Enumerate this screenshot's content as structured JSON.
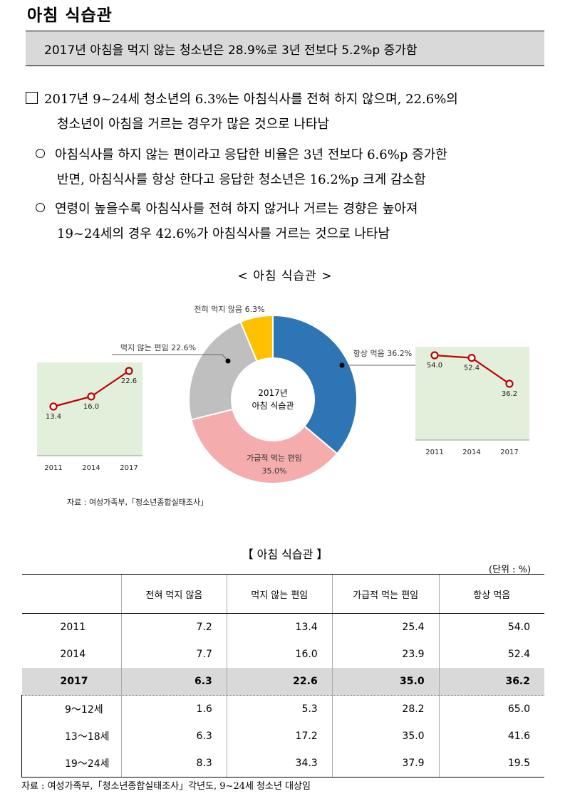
{
  "title": "아침 식습관",
  "headline": "2017년 아침을 먹지 않는 청소년은 28.9%로 3년 전보다 5.2%p 증가함",
  "bullets": {
    "main_line1": "2017년 9~24세 청소년의 6.3%는 아침식사를 전혀 하지 않으며, 22.6%의",
    "main_line2": "청소년이 아침을 거르는 경우가 많은 것으로 나타남",
    "sub1_line1": "아침식사를 하지 않는 편이라고 응답한 비율은 3년 전보다 6.6%p 증가한",
    "sub1_line2": "반면, 아침식사를 항상 한다고 응답한 청소년은 16.2%p 크게 감소함",
    "sub2_line1": "연령이 높을수록 아침식사를 전혀 하지 않거나 거르는 경향은 높아져",
    "sub2_line2": "19~24세의 경우 42.6%가 아침식사를 거르는 것으로 나타남"
  },
  "chart_title": "< 아침 식습관 >",
  "chart_data": [
    {
      "type": "pie",
      "center_label_line1": "2017년",
      "center_label_line2": "아침 식습관",
      "slices": [
        {
          "label": "항상 먹음",
          "value": 36.2,
          "display": "항상 먹음  36.2%",
          "color": "#2e75b6"
        },
        {
          "label": "가급적 먹는 편임",
          "value": 35.0,
          "display": "35.0%",
          "color": "#f4acac"
        },
        {
          "label": "먹지 않는 편임",
          "value": 22.6,
          "display": "먹지 않는 편임 22.6%",
          "color": "#bfbfbf"
        },
        {
          "label": "전혀 먹지 않음",
          "value": 6.3,
          "display": "전혀 먹지 않음 6.3%",
          "color": "#ffc000"
        }
      ]
    },
    {
      "type": "line",
      "categories": [
        "2011",
        "2014",
        "2017"
      ],
      "series": [
        {
          "values": [
            13.4,
            16.0,
            22.6
          ],
          "labels": [
            "13.4",
            "16.0",
            "22.6"
          ]
        }
      ],
      "color": "#c00000"
    },
    {
      "type": "line",
      "categories": [
        "2011",
        "2014",
        "2017"
      ],
      "series": [
        {
          "values": [
            54.0,
            52.4,
            36.2
          ],
          "labels": [
            "54.0",
            "52.4",
            "36.2"
          ]
        }
      ],
      "color": "#c00000"
    }
  ],
  "source1": "자료 : 여성가족부,「청소년종합실태조사」",
  "table_title": "【 아침 식습관 】",
  "unit": "(단위 : %)",
  "table": {
    "headers": [
      "전혀 먹지 않음",
      "먹지 않는 편임",
      "가급적 먹는 편임",
      "항상 먹음"
    ],
    "rows": [
      {
        "label": "2011",
        "values": [
          "7.2",
          "13.4",
          "25.4",
          "54.0"
        ]
      },
      {
        "label": "2014",
        "values": [
          "7.7",
          "16.0",
          "23.9",
          "52.4"
        ]
      },
      {
        "label": "2017",
        "values": [
          "6.3",
          "22.6",
          "35.0",
          "36.2"
        ]
      },
      {
        "label": "9～12세",
        "values": [
          "1.6",
          "5.3",
          "28.2",
          "65.0"
        ]
      },
      {
        "label": "13～18세",
        "values": [
          "6.3",
          "17.2",
          "35.0",
          "41.6"
        ]
      },
      {
        "label": "19～24세",
        "values": [
          "8.3",
          "34.3",
          "37.9",
          "19.5"
        ]
      }
    ]
  },
  "source2": "자료 : 여성가족부,「청소년종합실태조사」각년도, 9~24세 청소년 대상임"
}
